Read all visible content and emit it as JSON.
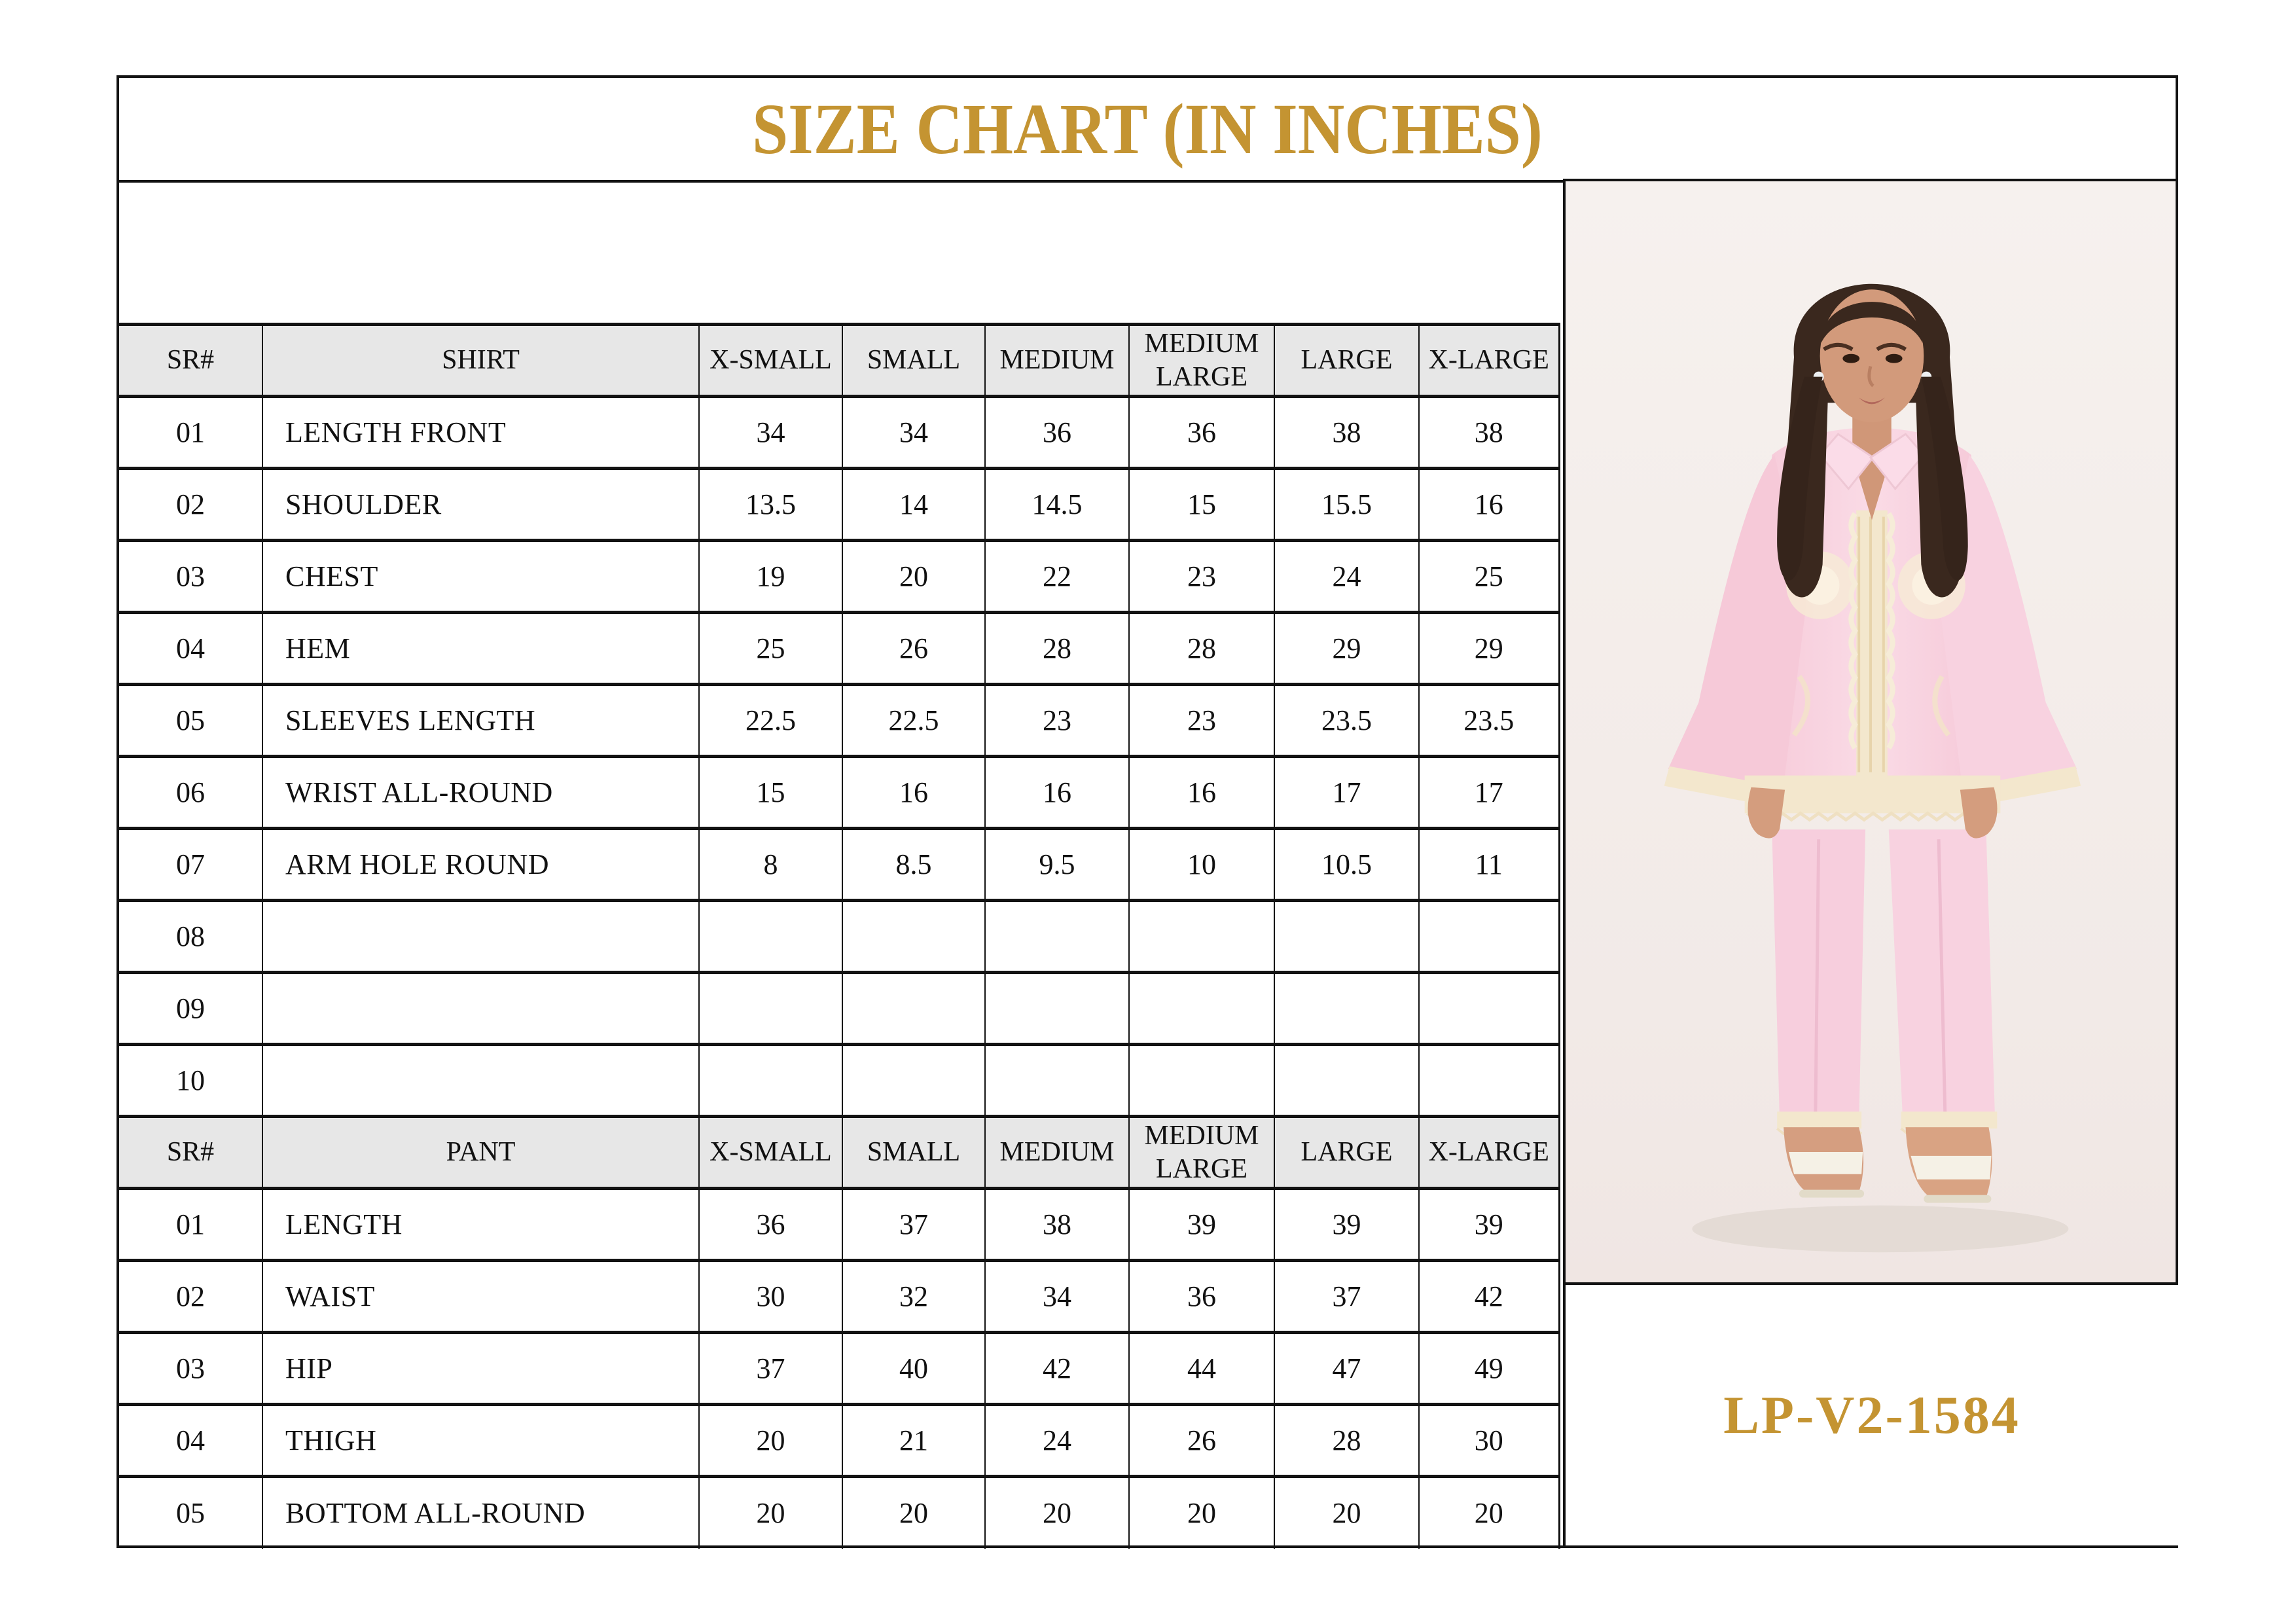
{
  "title": "SIZE CHART (IN INCHES)",
  "product_code": "LP-V2-1584",
  "colors": {
    "accent_gold": "#C49432",
    "header_bg": "#E7E7E7",
    "photo_bg": "#F4EDEA",
    "line": "#131313"
  },
  "size_columns": [
    "X-SMALL",
    "SMALL",
    "MEDIUM",
    "MEDIUM LARGE",
    "LARGE",
    "X-LARGE"
  ],
  "shirt_table": {
    "key": "shirt",
    "sr_header": "SR#",
    "name_header": "SHIRT",
    "rows": [
      {
        "sr": "01",
        "label": "LENGTH FRONT",
        "values": [
          "34",
          "34",
          "36",
          "36",
          "38",
          "38"
        ]
      },
      {
        "sr": "02",
        "label": "SHOULDER",
        "values": [
          "13.5",
          "14",
          "14.5",
          "15",
          "15.5",
          "16"
        ]
      },
      {
        "sr": "03",
        "label": "CHEST",
        "values": [
          "19",
          "20",
          "22",
          "23",
          "24",
          "25"
        ]
      },
      {
        "sr": "04",
        "label": "HEM",
        "values": [
          "25",
          "26",
          "28",
          "28",
          "29",
          "29"
        ]
      },
      {
        "sr": "05",
        "label": "SLEEVES LENGTH",
        "values": [
          "22.5",
          "22.5",
          "23",
          "23",
          "23.5",
          "23.5"
        ]
      },
      {
        "sr": "06",
        "label": "WRIST ALL-ROUND",
        "values": [
          "15",
          "16",
          "16",
          "16",
          "17",
          "17"
        ]
      },
      {
        "sr": "07",
        "label": "ARM HOLE ROUND",
        "values": [
          "8",
          "8.5",
          "9.5",
          "10",
          "10.5",
          "11"
        ]
      },
      {
        "sr": "08",
        "label": "",
        "values": [
          "",
          "",
          "",
          "",
          "",
          ""
        ]
      },
      {
        "sr": "09",
        "label": "",
        "values": [
          "",
          "",
          "",
          "",
          "",
          ""
        ]
      },
      {
        "sr": "10",
        "label": "",
        "values": [
          "",
          "",
          "",
          "",
          "",
          ""
        ]
      }
    ]
  },
  "pant_table": {
    "key": "pant",
    "sr_header": "SR#",
    "name_header": "PANT",
    "rows": [
      {
        "sr": "01",
        "label": "LENGTH",
        "values": [
          "36",
          "37",
          "38",
          "39",
          "39",
          "39"
        ]
      },
      {
        "sr": "02",
        "label": "WAIST",
        "values": [
          "30",
          "32",
          "34",
          "36",
          "37",
          "42"
        ]
      },
      {
        "sr": "03",
        "label": "HIP",
        "values": [
          "37",
          "40",
          "42",
          "44",
          "47",
          "49"
        ]
      },
      {
        "sr": "04",
        "label": "THIGH",
        "values": [
          "20",
          "21",
          "24",
          "26",
          "28",
          "30"
        ]
      },
      {
        "sr": "05",
        "label": "BOTTOM ALL-ROUND",
        "values": [
          "20",
          "20",
          "20",
          "20",
          "20",
          "20"
        ]
      }
    ]
  },
  "photo": {
    "alt": "Model with long dark wavy hair wearing a light pink collared shirt with cream lace placket, flared lace-trimmed sleeves and matching pink trousers with lace ankle trim and white flat sandals"
  }
}
